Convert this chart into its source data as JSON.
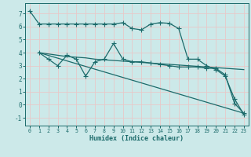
{
  "xlabel": "Humidex (Indice chaleur)",
  "bg_color": "#cce9e9",
  "grid_color": "#b8d8d8",
  "line_color": "#1c6b6b",
  "ylim": [
    -1.6,
    7.8
  ],
  "xlim": [
    -0.5,
    23.5
  ],
  "line1_x": [
    0,
    1,
    2,
    3,
    4,
    5,
    6,
    7,
    8,
    9,
    10,
    11,
    12,
    13,
    14,
    15,
    16,
    17,
    18,
    19,
    20,
    21,
    22,
    23
  ],
  "line1_y": [
    7.2,
    6.2,
    6.2,
    6.2,
    6.2,
    6.2,
    6.2,
    6.2,
    6.2,
    6.2,
    6.3,
    5.85,
    5.75,
    6.2,
    6.3,
    6.25,
    5.85,
    3.5,
    3.5,
    3.0,
    2.7,
    2.2,
    0.45,
    -0.75
  ],
  "line2_x": [
    1,
    2,
    3,
    4,
    5,
    6,
    7,
    8,
    9,
    10,
    11,
    12,
    13,
    14,
    15,
    16,
    17,
    18,
    19,
    20,
    21,
    22,
    23
  ],
  "line2_y": [
    4.0,
    3.5,
    3.0,
    3.8,
    3.5,
    2.2,
    3.3,
    3.5,
    4.7,
    3.5,
    3.3,
    3.3,
    3.2,
    3.1,
    3.0,
    2.9,
    2.9,
    2.9,
    2.8,
    2.8,
    2.3,
    0.1,
    -0.65
  ],
  "line3_x": [
    1,
    23
  ],
  "line3_y": [
    4.0,
    -0.65
  ],
  "line4_x": [
    1,
    2,
    3,
    4,
    5,
    6,
    7,
    8,
    9,
    10,
    11,
    12,
    13,
    14,
    15,
    16,
    17,
    18,
    19,
    20,
    21,
    22,
    23
  ],
  "line4_y": [
    4.0,
    3.9,
    3.8,
    3.7,
    3.65,
    3.6,
    3.5,
    3.45,
    3.4,
    3.35,
    3.3,
    3.25,
    3.2,
    3.15,
    3.1,
    3.05,
    3.0,
    2.95,
    2.9,
    2.85,
    2.8,
    2.75,
    2.7
  ],
  "yticks": [
    -1,
    0,
    1,
    2,
    3,
    4,
    5,
    6,
    7
  ],
  "xticks": [
    0,
    1,
    2,
    3,
    4,
    5,
    6,
    7,
    8,
    9,
    10,
    11,
    12,
    13,
    14,
    15,
    16,
    17,
    18,
    19,
    20,
    21,
    22,
    23
  ]
}
